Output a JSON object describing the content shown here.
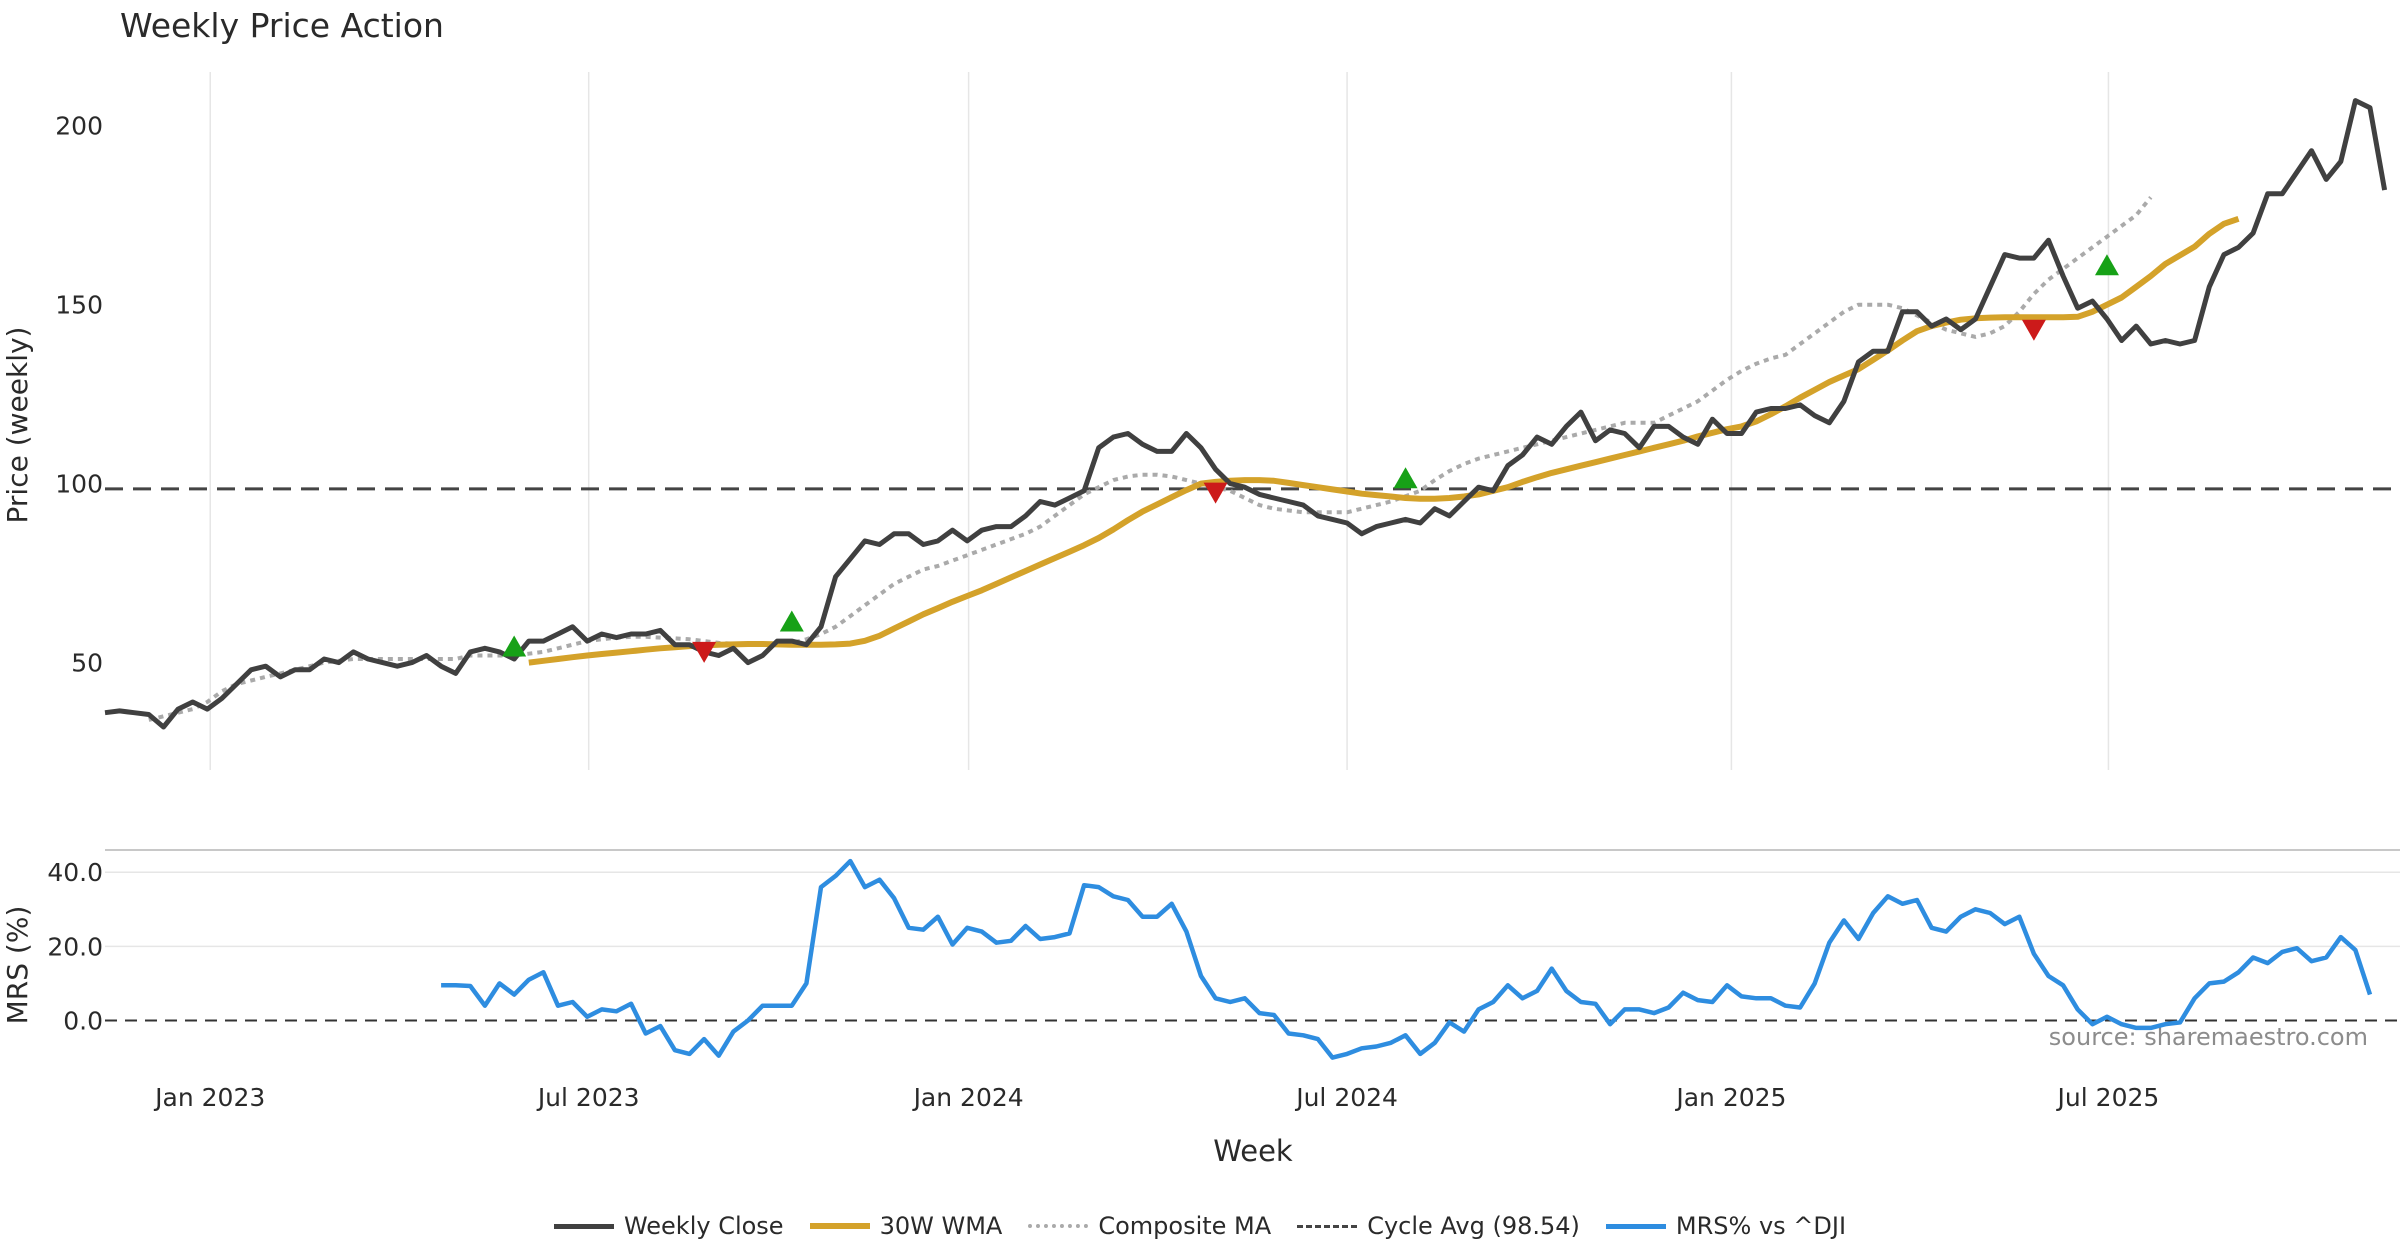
{
  "chart_data": {
    "type": "line",
    "title": "Weekly Price Action",
    "xlabel": "Week",
    "source": "source: sharemaestro.com",
    "x_ticks": [
      "Jan 2023",
      "Jul 2023",
      "Jan 2024",
      "Jul 2024",
      "Jan 2025",
      "Jul 2025"
    ],
    "price_panel": {
      "ylabel": "Price (weekly)",
      "ylim": [
        20,
        215
      ],
      "y_ticks": [
        50,
        100,
        150,
        200
      ],
      "x_range_weeks": [
        0,
        155
      ],
      "close": [
        36,
        36.5,
        36,
        35.5,
        32,
        37,
        39,
        37,
        40,
        44,
        48,
        49,
        46,
        48,
        48,
        51,
        50,
        53,
        51,
        50,
        49,
        50,
        52,
        49,
        47,
        53,
        54,
        53,
        51,
        56,
        56,
        58,
        60,
        56,
        58,
        57,
        58,
        58,
        59,
        55,
        55,
        53,
        52,
        54,
        50,
        52,
        56,
        56,
        55,
        60,
        74,
        79,
        84,
        83,
        86,
        86,
        83,
        84,
        87,
        84,
        87,
        88,
        88,
        91,
        95,
        94,
        96,
        98,
        110,
        113,
        114,
        111,
        109,
        109,
        114,
        110,
        104,
        100,
        99,
        97,
        96,
        95,
        94,
        91,
        90,
        89,
        86,
        88,
        89,
        90,
        89,
        93,
        91,
        95,
        99,
        98,
        105,
        108,
        113,
        111,
        116,
        120,
        112,
        115,
        114,
        110,
        116,
        116,
        113,
        111,
        118,
        114,
        114,
        120,
        121,
        121,
        122,
        119,
        117,
        123,
        134,
        137,
        137,
        148,
        148,
        144,
        146,
        143,
        146,
        155,
        164,
        163,
        163,
        168,
        158,
        149,
        151,
        146,
        140,
        144,
        139,
        140,
        139,
        140,
        155,
        164,
        166,
        170,
        181,
        181,
        187,
        193,
        185,
        190,
        207,
        205,
        182
      ],
      "wma30": {
        "start_week": 29,
        "values": [
          50,
          50.5,
          51,
          51.5,
          52,
          52.4,
          52.8,
          53.2,
          53.6,
          54,
          54.3,
          54.6,
          54.8,
          55,
          55.1,
          55.2,
          55.2,
          55.1,
          55,
          55,
          55,
          55.1,
          55.3,
          56.1,
          57.5,
          59.5,
          61.5,
          63.5,
          65.2,
          67,
          68.6,
          70.2,
          72,
          73.8,
          75.6,
          77.4,
          79.2,
          81,
          82.8,
          84.8,
          87.2,
          89.8,
          92.2,
          94.2,
          96.2,
          98.2,
          100,
          100.5,
          100.8,
          101,
          101,
          100.8,
          100.2,
          99.6,
          99,
          98.4,
          97.8,
          97.2,
          96.8,
          96.4,
          96,
          95.8,
          95.8,
          96,
          96.4,
          97,
          98,
          99,
          100.5,
          101.8,
          103,
          104,
          105,
          106,
          107,
          108,
          109,
          110,
          111,
          112,
          113.2,
          114.2,
          115.2,
          116,
          117.4,
          119.4,
          121.6,
          124,
          126.2,
          128.4,
          130.2,
          132,
          134.6,
          137.2,
          140,
          142.6,
          144,
          145,
          145.8,
          146.2,
          146.4,
          146.5,
          146.5,
          146.5,
          146.5,
          146.5,
          146.6,
          148,
          150,
          152,
          155,
          158,
          161.4,
          163.8,
          166.2,
          169.8,
          172.6,
          174
        ]
      },
      "composite_ma": {
        "start_week": 3,
        "values": [
          34,
          35,
          36,
          37,
          39,
          42,
          44,
          45,
          46,
          47,
          48,
          49,
          50,
          50.5,
          51,
          51,
          51,
          51,
          51,
          51,
          51,
          51,
          52,
          52,
          52,
          52,
          52.5,
          53,
          54,
          55,
          56,
          56.5,
          57,
          57.2,
          57.2,
          57,
          56.8,
          56.5,
          56,
          55.5,
          55.3,
          55,
          55,
          55,
          55.5,
          56.5,
          58,
          60,
          63,
          66,
          69,
          72,
          74,
          76,
          77,
          78.5,
          80,
          81.5,
          83,
          84.5,
          86,
          88,
          91,
          94,
          97,
          99,
          101,
          102,
          102.5,
          102.5,
          102,
          101,
          100,
          99,
          98,
          96,
          94,
          93,
          92.5,
          92,
          92,
          92,
          92,
          93,
          94,
          95,
          96.5,
          98,
          101,
          103.5,
          105.5,
          107,
          108,
          109,
          110,
          111,
          112,
          113,
          114,
          115,
          116,
          117,
          117,
          117,
          119,
          121,
          123,
          126,
          129,
          131.5,
          133.5,
          135,
          136,
          139,
          142,
          145,
          148,
          150,
          150,
          150,
          149,
          147,
          145,
          143,
          142,
          141,
          142,
          144,
          148,
          153,
          157,
          160,
          163,
          166,
          169,
          172,
          175,
          180
        ]
      },
      "cycle_avg": 98.54,
      "buy_signals": [
        [
          28,
          54.5
        ],
        [
          47,
          61.5
        ],
        [
          89,
          101.5
        ],
        [
          137,
          161
        ]
      ],
      "sell_signals": [
        [
          41,
          53
        ],
        [
          76,
          97.5
        ],
        [
          132,
          143
        ]
      ]
    },
    "mrs_panel": {
      "ylabel": "MRS (%)",
      "ylim": [
        -12,
        46
      ],
      "y_ticks": [
        "0.0",
        "20.0",
        "40.0"
      ],
      "y_tick_values": [
        0,
        20,
        40
      ],
      "start_week": 23,
      "values": [
        9.5,
        9.5,
        9.3,
        4,
        10,
        7,
        11,
        13,
        4,
        5,
        1,
        3,
        2.5,
        4.5,
        -3.5,
        -1.5,
        -8,
        -9,
        -5,
        -9.5,
        -3,
        0,
        4,
        4,
        4,
        10,
        36,
        39,
        43,
        36,
        38,
        33,
        25,
        24.5,
        28,
        20.5,
        25,
        24,
        21,
        21.5,
        25.5,
        22,
        22.5,
        23.5,
        36.5,
        36,
        33.5,
        32.5,
        28,
        28,
        31.5,
        24,
        12,
        6,
        5,
        6,
        2,
        1.5,
        -3.5,
        -4,
        -5,
        -10,
        -9,
        -7.5,
        -7,
        -6,
        -4,
        -9,
        -6,
        -0.5,
        -3,
        3,
        5,
        9.5,
        6,
        8,
        14,
        8,
        5,
        4.5,
        -1,
        3,
        3,
        2,
        3.5,
        7.5,
        5.5,
        5,
        9.5,
        6.5,
        6,
        6,
        4,
        3.5,
        10,
        21,
        27,
        22,
        29,
        33.5,
        31.5,
        32.5,
        25,
        24,
        28,
        30,
        29,
        26,
        28,
        18,
        12,
        9.5,
        3,
        -1,
        1,
        -1,
        -2,
        -2,
        -1,
        -0.5,
        6,
        10,
        10.5,
        13,
        17,
        15.5,
        18.5,
        19.5,
        16,
        17,
        22.5,
        19,
        7
      ]
    }
  },
  "legend": {
    "close": "Weekly Close",
    "wma": "30W WMA",
    "composite": "Composite MA",
    "cycle": "Cycle Avg (98.54)",
    "mrs": "MRS% vs ^DJI"
  },
  "colors": {
    "close": "#404040",
    "wma": "#d4a22a",
    "composite": "#aaaaaa",
    "cycle": "#444444",
    "mrs": "#2e8de0",
    "buy": "#17a117",
    "sell": "#cc1a1a",
    "grid": "#e6e6e6"
  }
}
